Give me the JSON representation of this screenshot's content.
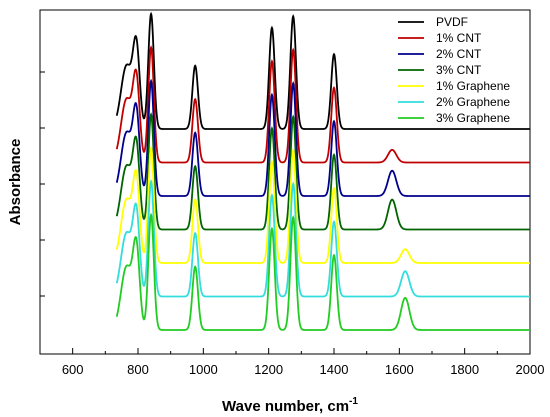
{
  "chart_data": {
    "type": "line",
    "title": "",
    "xlabel": "Wave number, cm",
    "xlabel_superscript": "-1",
    "ylabel": "Absorbance",
    "xlim": [
      500,
      2000
    ],
    "x_ticks": [
      600,
      800,
      1000,
      1200,
      1400,
      1600,
      1800,
      2000
    ],
    "grid": false,
    "legend_position": "top-right",
    "y_axis_tick_labels": "none",
    "series": [
      {
        "name": "PVDF",
        "color": "#000000",
        "baseline_offset": 6,
        "peaks": [
          [
            765,
            0.55,
            20
          ],
          [
            795,
            0.68,
            12
          ],
          [
            840,
            1.0,
            10
          ],
          [
            975,
            0.55,
            10
          ],
          [
            1210,
            0.88,
            10
          ],
          [
            1275,
            0.98,
            10
          ],
          [
            1400,
            0.65,
            10
          ]
        ]
      },
      {
        "name": "1% CNT",
        "color": "#c00000",
        "baseline_offset": 5,
        "peaks": [
          [
            765,
            0.55,
            20
          ],
          [
            795,
            0.68,
            12
          ],
          [
            840,
            1.0,
            10
          ],
          [
            975,
            0.55,
            10
          ],
          [
            1210,
            0.88,
            10
          ],
          [
            1275,
            0.98,
            10
          ],
          [
            1400,
            0.65,
            10
          ],
          [
            1578,
            0.11,
            15
          ]
        ]
      },
      {
        "name": "2% CNT",
        "color": "#00008b",
        "baseline_offset": 4,
        "peaks": [
          [
            765,
            0.55,
            20
          ],
          [
            795,
            0.68,
            12
          ],
          [
            840,
            1.0,
            10
          ],
          [
            975,
            0.55,
            10
          ],
          [
            1210,
            0.88,
            10
          ],
          [
            1275,
            0.98,
            10
          ],
          [
            1400,
            0.65,
            10
          ],
          [
            1578,
            0.22,
            15
          ]
        ]
      },
      {
        "name": "3% CNT",
        "color": "#006400",
        "baseline_offset": 3,
        "peaks": [
          [
            765,
            0.55,
            20
          ],
          [
            795,
            0.68,
            12
          ],
          [
            840,
            1.0,
            10
          ],
          [
            975,
            0.55,
            10
          ],
          [
            1210,
            0.88,
            10
          ],
          [
            1275,
            0.98,
            10
          ],
          [
            1400,
            0.65,
            10
          ],
          [
            1578,
            0.26,
            15
          ]
        ]
      },
      {
        "name": "1% Graphene",
        "color": "#ffff00",
        "baseline_offset": 2,
        "peaks": [
          [
            765,
            0.55,
            20
          ],
          [
            795,
            0.68,
            12
          ],
          [
            840,
            1.0,
            10
          ],
          [
            975,
            0.55,
            10
          ],
          [
            1210,
            0.88,
            10
          ],
          [
            1275,
            0.98,
            10
          ],
          [
            1400,
            0.65,
            10
          ],
          [
            1618,
            0.12,
            15
          ]
        ]
      },
      {
        "name": "2% Graphene",
        "color": "#33dddd",
        "baseline_offset": 1,
        "peaks": [
          [
            765,
            0.55,
            20
          ],
          [
            795,
            0.68,
            12
          ],
          [
            840,
            1.0,
            10
          ],
          [
            975,
            0.55,
            10
          ],
          [
            1210,
            0.88,
            10
          ],
          [
            1275,
            0.98,
            10
          ],
          [
            1400,
            0.65,
            10
          ],
          [
            1618,
            0.22,
            15
          ]
        ]
      },
      {
        "name": "3% Graphene",
        "color": "#22cc22",
        "baseline_offset": 0,
        "peaks": [
          [
            765,
            0.55,
            20
          ],
          [
            795,
            0.68,
            12
          ],
          [
            840,
            1.0,
            10
          ],
          [
            975,
            0.55,
            10
          ],
          [
            1210,
            0.88,
            10
          ],
          [
            1275,
            0.98,
            10
          ],
          [
            1400,
            0.65,
            10
          ],
          [
            1618,
            0.28,
            15
          ]
        ]
      }
    ]
  }
}
